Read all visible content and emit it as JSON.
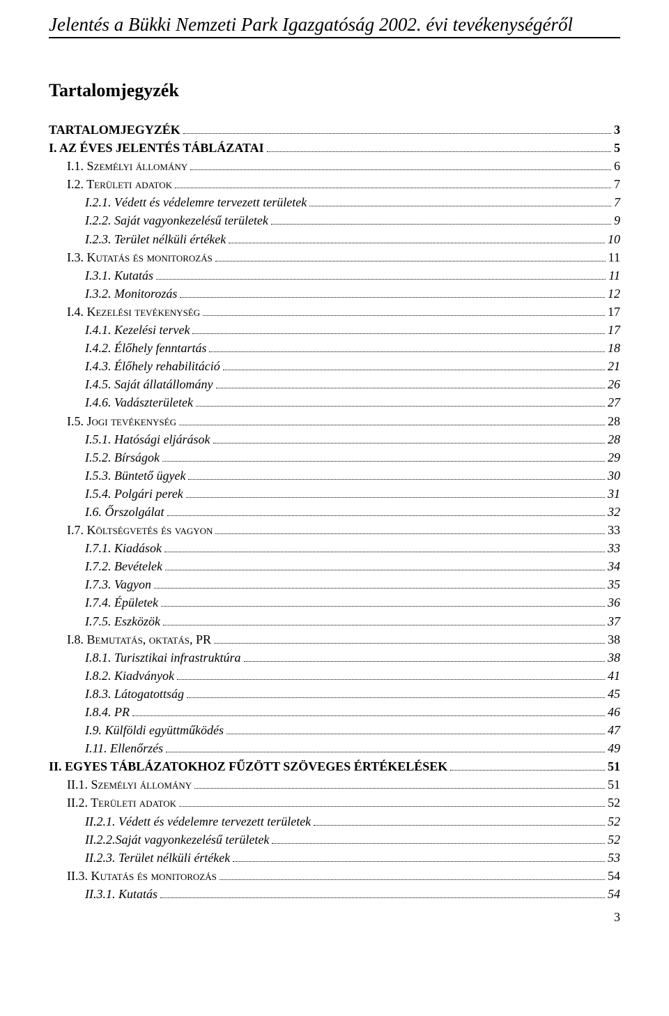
{
  "running_title": "Jelentés a Bükki Nemzeti Park Igazgatóság 2002. évi tevékenységéről",
  "toc_heading": "Tartalomjegyzék",
  "page_number": "3",
  "toc": [
    {
      "label": "TARTALOMJEGYZÉK",
      "page": "3",
      "level": 0,
      "bold": true
    },
    {
      "label": "I. AZ ÉVES JELENTÉS TÁBLÁZATAI",
      "page": "5",
      "level": 0,
      "bold": true
    },
    {
      "label": "I.1. Személyi állomány",
      "page": "6",
      "level": 1,
      "smallcaps": true
    },
    {
      "label": "I.2. Területi adatok",
      "page": "7",
      "level": 1,
      "smallcaps": true
    },
    {
      "label": "I.2.1. Védett és védelemre tervezett területek",
      "page": "7",
      "level": 2,
      "italic": true
    },
    {
      "label": "I.2.2. Saját vagyonkezelésű területek",
      "page": "9",
      "level": 2,
      "italic": true
    },
    {
      "label": "I.2.3. Terület nélküli értékek",
      "page": "10",
      "level": 2,
      "italic": true
    },
    {
      "label": "I.3. Kutatás és monitorozás",
      "page": "11",
      "level": 1,
      "smallcaps": true
    },
    {
      "label": "I.3.1. Kutatás",
      "page": "11",
      "level": 2,
      "italic": true
    },
    {
      "label": "I.3.2. Monitorozás",
      "page": "12",
      "level": 2,
      "italic": true
    },
    {
      "label": "I.4. Kezelési tevékenység",
      "page": "17",
      "level": 1,
      "smallcaps": true
    },
    {
      "label": "I.4.1. Kezelési tervek",
      "page": "17",
      "level": 2,
      "italic": true
    },
    {
      "label": "I.4.2. Élőhely fenntartás",
      "page": "18",
      "level": 2,
      "italic": true
    },
    {
      "label": "I.4.3. Élőhely rehabilitáció",
      "page": "21",
      "level": 2,
      "italic": true
    },
    {
      "label": "I.4.5. Saját állatállomány",
      "page": "26",
      "level": 2,
      "italic": true
    },
    {
      "label": "I.4.6. Vadászterületek",
      "page": "27",
      "level": 2,
      "italic": true
    },
    {
      "label": "I.5. Jogi tevékenység",
      "page": "28",
      "level": 1,
      "smallcaps": true
    },
    {
      "label": "I.5.1. Hatósági eljárások",
      "page": "28",
      "level": 2,
      "italic": true
    },
    {
      "label": "I.5.2. Bírságok",
      "page": "29",
      "level": 2,
      "italic": true
    },
    {
      "label": "I.5.3. Büntető ügyek",
      "page": "30",
      "level": 2,
      "italic": true
    },
    {
      "label": "I.5.4. Polgári perek",
      "page": "31",
      "level": 2,
      "italic": true
    },
    {
      "label": "I.6. Őrszolgálat",
      "page": "32",
      "level": 2,
      "italic": true
    },
    {
      "label": "I.7. Költségvetés és vagyon",
      "page": "33",
      "level": 1,
      "smallcaps": true
    },
    {
      "label": "I.7.1. Kiadások",
      "page": "33",
      "level": 2,
      "italic": true
    },
    {
      "label": "I.7.2. Bevételek",
      "page": "34",
      "level": 2,
      "italic": true
    },
    {
      "label": "I.7.3. Vagyon",
      "page": "35",
      "level": 2,
      "italic": true
    },
    {
      "label": "I.7.4. Épületek",
      "page": "36",
      "level": 2,
      "italic": true
    },
    {
      "label": "I.7.5. Eszközök",
      "page": "37",
      "level": 2,
      "italic": true
    },
    {
      "label": "I.8. Bemutatás, oktatás, PR",
      "page": "38",
      "level": 1,
      "smallcaps": true
    },
    {
      "label": "I.8.1. Turisztikai infrastruktúra",
      "page": "38",
      "level": 2,
      "italic": true
    },
    {
      "label": "I.8.2. Kiadványok",
      "page": "41",
      "level": 2,
      "italic": true
    },
    {
      "label": "I.8.3. Látogatottság",
      "page": "45",
      "level": 2,
      "italic": true
    },
    {
      "label": "I.8.4. PR",
      "page": "46",
      "level": 2,
      "italic": true
    },
    {
      "label": "I.9. Külföldi együttműködés",
      "page": "47",
      "level": 2,
      "italic": true
    },
    {
      "label": "I.11. Ellenőrzés",
      "page": "49",
      "level": 2,
      "italic": true
    },
    {
      "label": "II. EGYES TÁBLÁZATOKHOZ FŰZÖTT SZÖVEGES ÉRTÉKELÉSEK",
      "page": "51",
      "level": 0,
      "bold": true
    },
    {
      "label": "II.1. Személyi állomány",
      "page": "51",
      "level": 1,
      "smallcaps": true
    },
    {
      "label": "II.2. Területi adatok",
      "page": "52",
      "level": 1,
      "smallcaps": true
    },
    {
      "label": "II.2.1. Védett és védelemre tervezett területek",
      "page": "52",
      "level": 2,
      "italic": true
    },
    {
      "label": "II.2.2.Saját vagyonkezelésű területek",
      "page": "52",
      "level": 2,
      "italic": true
    },
    {
      "label": "II.2.3. Terület nélküli értékek",
      "page": "53",
      "level": 2,
      "italic": true
    },
    {
      "label": "II.3. Kutatás és monitorozás",
      "page": "54",
      "level": 1,
      "smallcaps": true
    },
    {
      "label": "II.3.1. Kutatás",
      "page": "54",
      "level": 2,
      "italic": true
    }
  ]
}
